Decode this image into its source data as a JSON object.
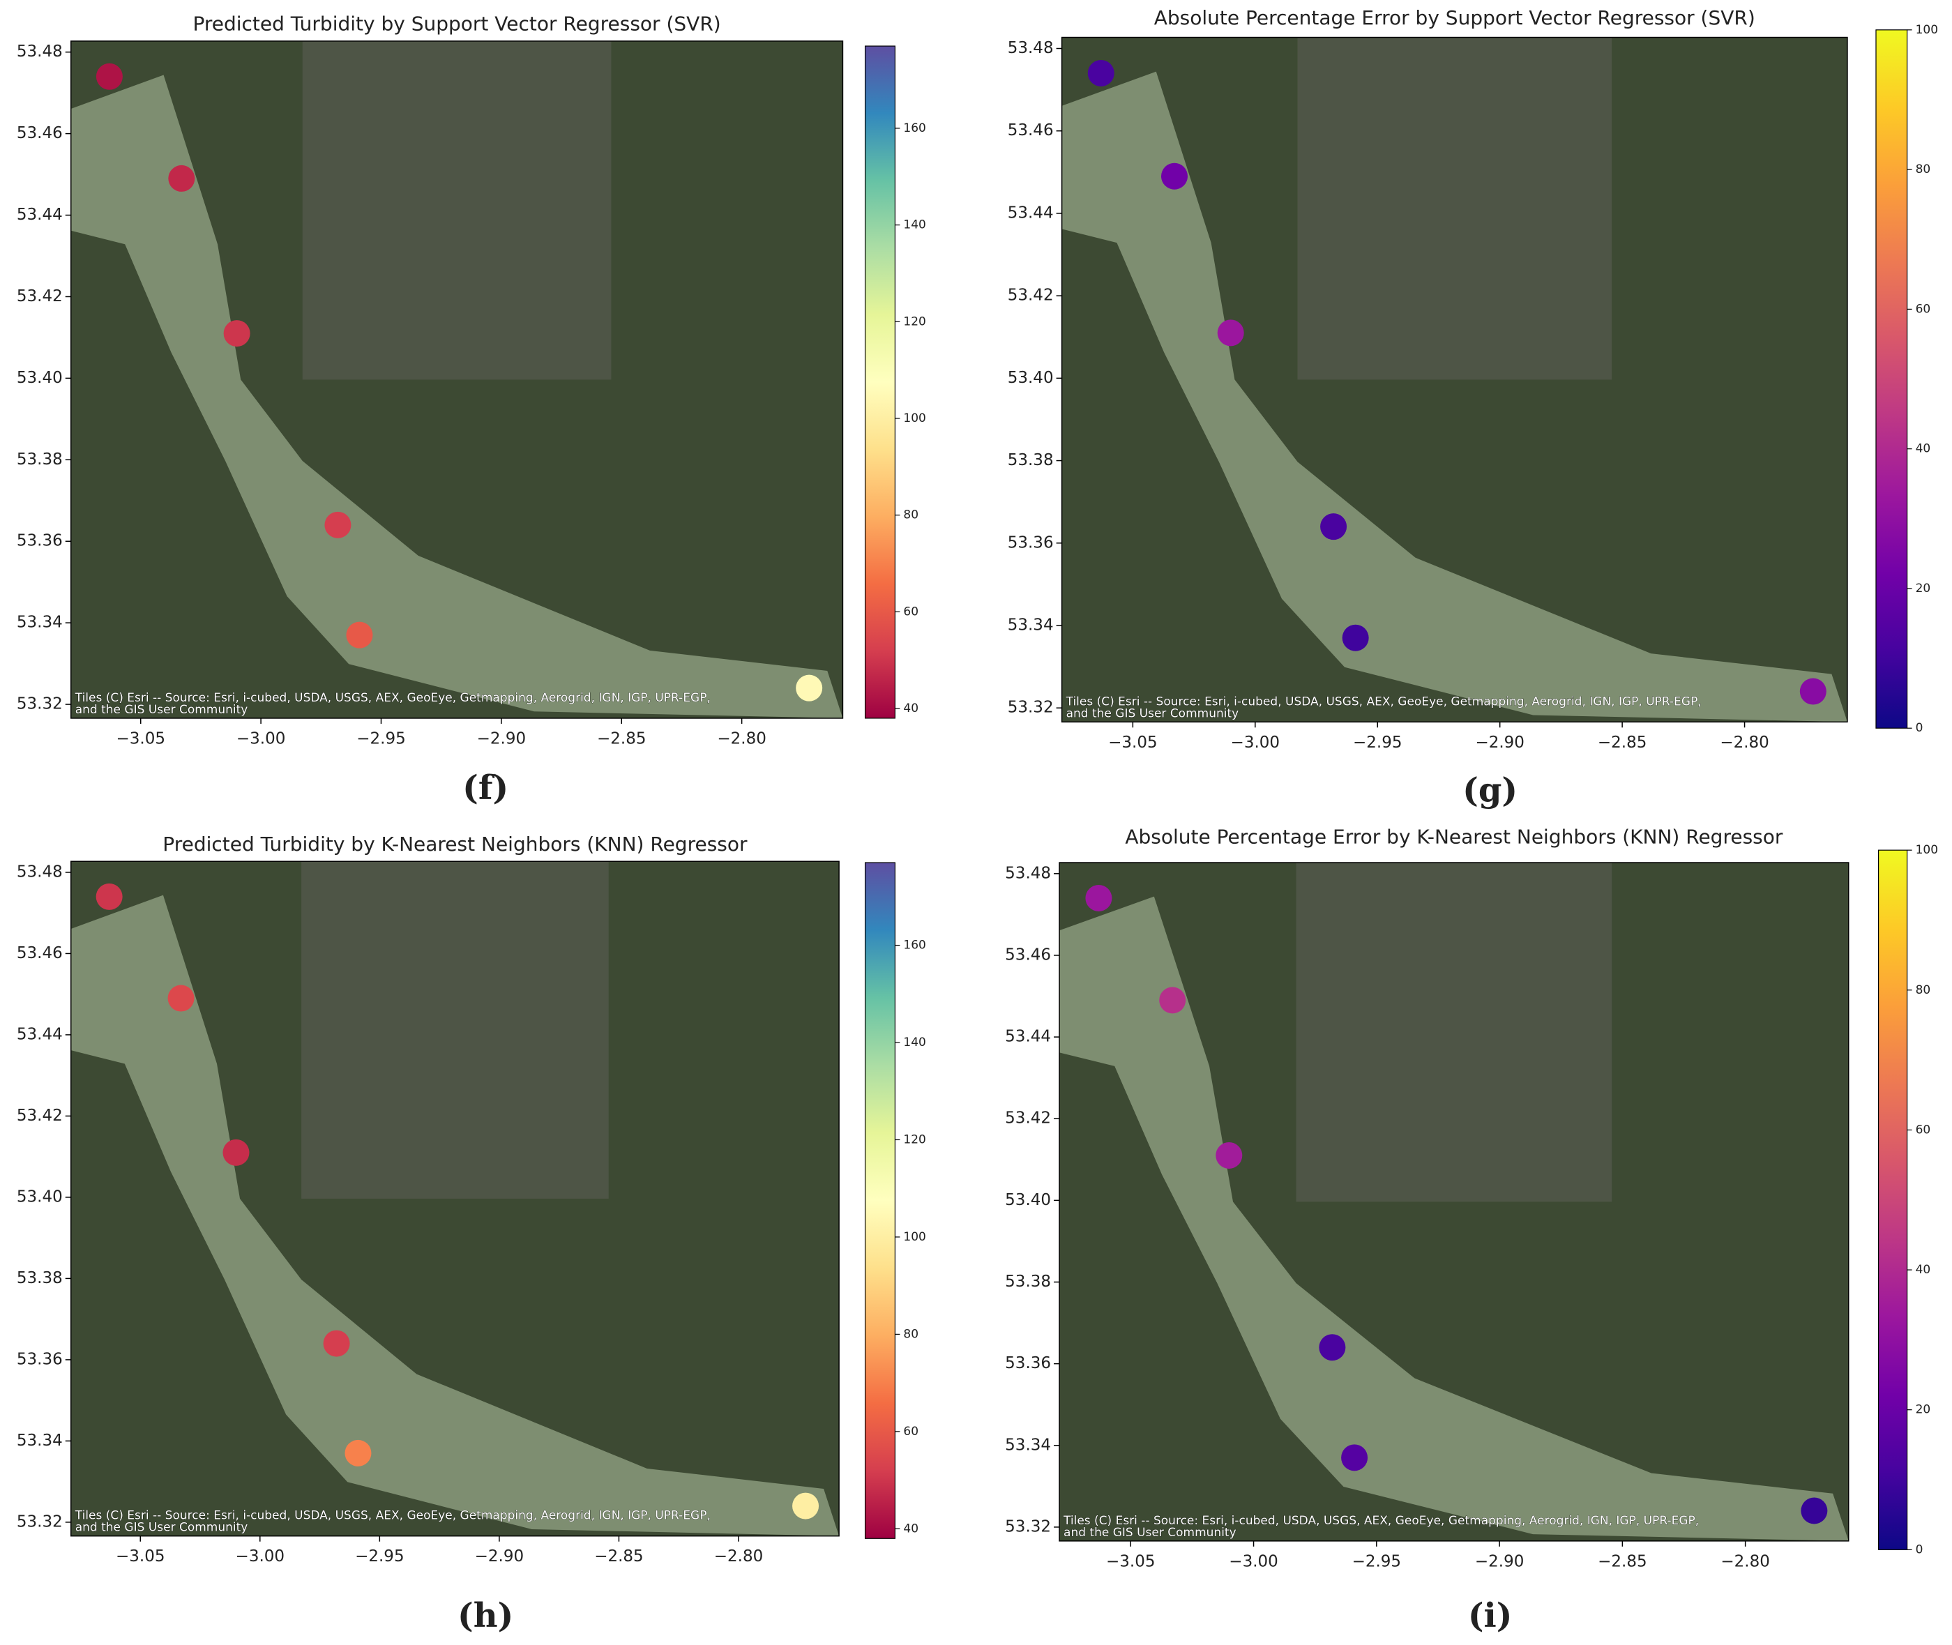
{
  "chart_data": [
    {
      "type": "scatter",
      "title": "Predicted Turbidity by Support Vector Regressor (SVR)",
      "panel_label": "(f)",
      "x": [
        -3.063,
        -3.033,
        -3.01,
        -2.968,
        -2.959,
        -2.772
      ],
      "y": [
        53.474,
        53.449,
        53.411,
        53.364,
        53.337,
        53.324
      ],
      "colors": [
        42,
        47,
        50,
        52,
        60,
        105
      ],
      "colormap": "Spectral",
      "clim": [
        38,
        177
      ],
      "cticks": [
        40,
        60,
        80,
        100,
        120,
        140,
        160
      ],
      "xlim": [
        -3.079,
        -2.758
      ],
      "ylim": [
        53.3166,
        53.4827
      ],
      "xticks": [
        {
          "value": -3.05,
          "label": "−3.05"
        },
        {
          "value": -3.0,
          "label": "−3.00"
        },
        {
          "value": -2.95,
          "label": "−2.95"
        },
        {
          "value": -2.9,
          "label": "−2.90"
        },
        {
          "value": -2.85,
          "label": "−2.85"
        },
        {
          "value": -2.8,
          "label": "−2.80"
        }
      ],
      "yticks": [
        {
          "value": 53.32,
          "label": "53.32"
        },
        {
          "value": 53.34,
          "label": "53.34"
        },
        {
          "value": 53.36,
          "label": "53.36"
        },
        {
          "value": 53.38,
          "label": "53.38"
        },
        {
          "value": 53.4,
          "label": "53.40"
        },
        {
          "value": 53.42,
          "label": "53.42"
        },
        {
          "value": 53.44,
          "label": "53.44"
        },
        {
          "value": 53.46,
          "label": "53.46"
        },
        {
          "value": 53.48,
          "label": "53.48"
        }
      ],
      "attribution": [
        "Tiles (C) Esri -- Source: Esri, i-cubed, USDA, USGS, AEX, GeoEye, Getmapping, Aerogrid, IGN, IGP, UPR-EGP,",
        "and the GIS User Community"
      ]
    },
    {
      "type": "scatter",
      "title": "Absolute Percentage Error by Support Vector Regressor (SVR)",
      "panel_label": "(g)",
      "x": [
        -3.063,
        -3.033,
        -3.01,
        -2.968,
        -2.959,
        -2.772
      ],
      "y": [
        53.474,
        53.449,
        53.411,
        53.364,
        53.337,
        53.324
      ],
      "colors": [
        12,
        22,
        33,
        12,
        10,
        28
      ],
      "colormap": "plasma",
      "clim": [
        0,
        100
      ],
      "cticks": [
        0,
        20,
        40,
        60,
        80,
        100
      ],
      "xlim": [
        -3.079,
        -2.758
      ],
      "ylim": [
        53.3166,
        53.4827
      ],
      "xticks": [
        {
          "value": -3.05,
          "label": "−3.05"
        },
        {
          "value": -3.0,
          "label": "−3.00"
        },
        {
          "value": -2.95,
          "label": "−2.95"
        },
        {
          "value": -2.9,
          "label": "−2.90"
        },
        {
          "value": -2.85,
          "label": "−2.85"
        },
        {
          "value": -2.8,
          "label": "−2.80"
        }
      ],
      "yticks": [
        {
          "value": 53.32,
          "label": "53.32"
        },
        {
          "value": 53.34,
          "label": "53.34"
        },
        {
          "value": 53.36,
          "label": "53.36"
        },
        {
          "value": 53.38,
          "label": "53.38"
        },
        {
          "value": 53.4,
          "label": "53.40"
        },
        {
          "value": 53.42,
          "label": "53.42"
        },
        {
          "value": 53.44,
          "label": "53.44"
        },
        {
          "value": 53.46,
          "label": "53.46"
        },
        {
          "value": 53.48,
          "label": "53.48"
        }
      ],
      "attribution": [
        "Tiles (C) Esri -- Source: Esri, i-cubed, USDA, USGS, AEX, GeoEye, Getmapping, Aerogrid, IGN, IGP, UPR-EGP,",
        "and the GIS User Community"
      ]
    },
    {
      "type": "scatter",
      "title": "Predicted Turbidity by K-Nearest Neighbors (KNN) Regressor",
      "panel_label": "(h)",
      "x": [
        -3.063,
        -3.033,
        -3.01,
        -2.968,
        -2.959,
        -2.772
      ],
      "y": [
        53.474,
        53.449,
        53.411,
        53.364,
        53.337,
        53.324
      ],
      "colors": [
        50,
        55,
        48,
        52,
        70,
        100
      ],
      "colormap": "Spectral",
      "clim": [
        38,
        177
      ],
      "cticks": [
        40,
        60,
        80,
        100,
        120,
        140,
        160
      ],
      "xlim": [
        -3.079,
        -2.758
      ],
      "ylim": [
        53.3166,
        53.4827
      ],
      "xticks": [
        {
          "value": -3.05,
          "label": "−3.05"
        },
        {
          "value": -3.0,
          "label": "−3.00"
        },
        {
          "value": -2.95,
          "label": "−2.95"
        },
        {
          "value": -2.9,
          "label": "−2.90"
        },
        {
          "value": -2.85,
          "label": "−2.85"
        },
        {
          "value": -2.8,
          "label": "−2.80"
        }
      ],
      "yticks": [
        {
          "value": 53.32,
          "label": "53.32"
        },
        {
          "value": 53.34,
          "label": "53.34"
        },
        {
          "value": 53.36,
          "label": "53.36"
        },
        {
          "value": 53.38,
          "label": "53.38"
        },
        {
          "value": 53.4,
          "label": "53.40"
        },
        {
          "value": 53.42,
          "label": "53.42"
        },
        {
          "value": 53.44,
          "label": "53.44"
        },
        {
          "value": 53.46,
          "label": "53.46"
        },
        {
          "value": 53.48,
          "label": "53.48"
        }
      ],
      "attribution": [
        "Tiles (C) Esri -- Source: Esri, i-cubed, USDA, USGS, AEX, GeoEye, Getmapping, Aerogrid, IGN, IGP, UPR-EGP,",
        "and the GIS User Community"
      ]
    },
    {
      "type": "scatter",
      "title": "Absolute Percentage Error by K-Nearest Neighbors (KNN) Regressor",
      "panel_label": "(i)",
      "x": [
        -3.063,
        -3.033,
        -3.01,
        -2.968,
        -2.959,
        -2.772
      ],
      "y": [
        53.474,
        53.449,
        53.411,
        53.364,
        53.337,
        53.324
      ],
      "colors": [
        33,
        42,
        35,
        12,
        15,
        8
      ],
      "colormap": "plasma",
      "clim": [
        0,
        100
      ],
      "cticks": [
        0,
        20,
        40,
        60,
        80,
        100
      ],
      "xlim": [
        -3.079,
        -2.758
      ],
      "ylim": [
        53.3166,
        53.4827
      ],
      "xticks": [
        {
          "value": -3.05,
          "label": "−3.05"
        },
        {
          "value": -3.0,
          "label": "−3.00"
        },
        {
          "value": -2.95,
          "label": "−2.95"
        },
        {
          "value": -2.9,
          "label": "−2.90"
        },
        {
          "value": -2.85,
          "label": "−2.85"
        },
        {
          "value": -2.8,
          "label": "−2.80"
        }
      ],
      "yticks": [
        {
          "value": 53.32,
          "label": "53.32"
        },
        {
          "value": 53.34,
          "label": "53.34"
        },
        {
          "value": 53.36,
          "label": "53.36"
        },
        {
          "value": 53.38,
          "label": "53.38"
        },
        {
          "value": 53.4,
          "label": "53.40"
        },
        {
          "value": 53.42,
          "label": "53.42"
        },
        {
          "value": 53.44,
          "label": "53.44"
        },
        {
          "value": 53.46,
          "label": "53.46"
        },
        {
          "value": 53.48,
          "label": "53.48"
        }
      ],
      "attribution": [
        "Tiles (C) Esri -- Source: Esri, i-cubed, USDA, USGS, AEX, GeoEye, Getmapping, Aerogrid, IGN, IGP, UPR-EGP,",
        "and the GIS User Community"
      ]
    }
  ]
}
